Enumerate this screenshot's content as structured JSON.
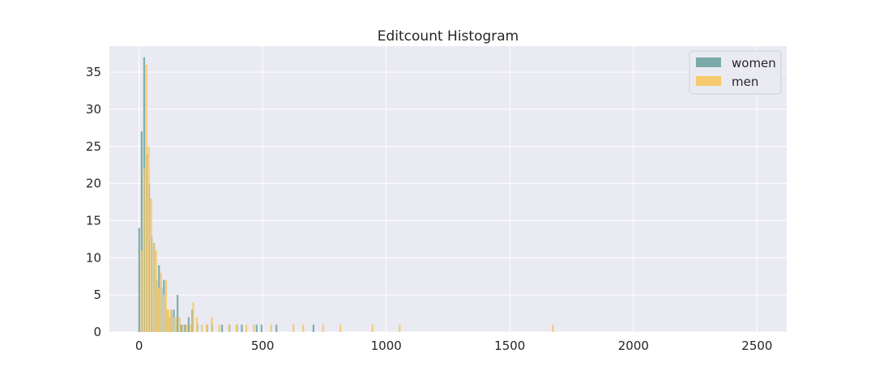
{
  "chart_data": {
    "type": "bar",
    "title": "Editcount Histogram",
    "xlabel": "",
    "ylabel": "",
    "xlim": [
      -120,
      2620
    ],
    "ylim": [
      0,
      38.5
    ],
    "xticks": [
      0,
      500,
      1000,
      1500,
      2000,
      2500
    ],
    "yticks": [
      0,
      5,
      10,
      15,
      20,
      25,
      30,
      35
    ],
    "grid": true,
    "legend_position": "top-right",
    "series": [
      {
        "name": "women",
        "color": "#7aabaa",
        "bars": [
          {
            "x": 5,
            "value": 14
          },
          {
            "x": 15,
            "value": 27
          },
          {
            "x": 25,
            "value": 37
          },
          {
            "x": 35,
            "value": 24
          },
          {
            "x": 45,
            "value": 20
          },
          {
            "x": 55,
            "value": 13
          },
          {
            "x": 65,
            "value": 12
          },
          {
            "x": 75,
            "value": 7
          },
          {
            "x": 85,
            "value": 9
          },
          {
            "x": 95,
            "value": 6
          },
          {
            "x": 105,
            "value": 7
          },
          {
            "x": 115,
            "value": 3
          },
          {
            "x": 125,
            "value": 2
          },
          {
            "x": 135,
            "value": 3
          },
          {
            "x": 145,
            "value": 3
          },
          {
            "x": 160,
            "value": 5
          },
          {
            "x": 175,
            "value": 1
          },
          {
            "x": 190,
            "value": 1
          },
          {
            "x": 205,
            "value": 2
          },
          {
            "x": 220,
            "value": 3
          },
          {
            "x": 240,
            "value": 1
          },
          {
            "x": 280,
            "value": 1
          },
          {
            "x": 300,
            "value": 1
          },
          {
            "x": 340,
            "value": 1
          },
          {
            "x": 370,
            "value": 1
          },
          {
            "x": 400,
            "value": 1
          },
          {
            "x": 420,
            "value": 1
          },
          {
            "x": 480,
            "value": 1
          },
          {
            "x": 500,
            "value": 1
          },
          {
            "x": 560,
            "value": 1
          },
          {
            "x": 710,
            "value": 1
          }
        ]
      },
      {
        "name": "men",
        "color": "#f5c96c",
        "bars": [
          {
            "x": 5,
            "value": 11
          },
          {
            "x": 15,
            "value": 22
          },
          {
            "x": 25,
            "value": 36
          },
          {
            "x": 35,
            "value": 25
          },
          {
            "x": 45,
            "value": 18
          },
          {
            "x": 55,
            "value": 12
          },
          {
            "x": 65,
            "value": 11
          },
          {
            "x": 75,
            "value": 6
          },
          {
            "x": 85,
            "value": 8
          },
          {
            "x": 95,
            "value": 5
          },
          {
            "x": 105,
            "value": 7
          },
          {
            "x": 115,
            "value": 3
          },
          {
            "x": 125,
            "value": 3
          },
          {
            "x": 135,
            "value": 2
          },
          {
            "x": 145,
            "value": 2
          },
          {
            "x": 160,
            "value": 2
          },
          {
            "x": 175,
            "value": 1
          },
          {
            "x": 190,
            "value": 1
          },
          {
            "x": 205,
            "value": 1
          },
          {
            "x": 215,
            "value": 4
          },
          {
            "x": 230,
            "value": 2
          },
          {
            "x": 250,
            "value": 1
          },
          {
            "x": 270,
            "value": 1
          },
          {
            "x": 290,
            "value": 2
          },
          {
            "x": 320,
            "value": 1
          },
          {
            "x": 360,
            "value": 1
          },
          {
            "x": 390,
            "value": 1
          },
          {
            "x": 430,
            "value": 1
          },
          {
            "x": 460,
            "value": 1
          },
          {
            "x": 530,
            "value": 1
          },
          {
            "x": 620,
            "value": 1
          },
          {
            "x": 660,
            "value": 1
          },
          {
            "x": 740,
            "value": 1
          },
          {
            "x": 810,
            "value": 1
          },
          {
            "x": 940,
            "value": 1
          },
          {
            "x": 1050,
            "value": 1
          },
          {
            "x": 1670,
            "value": 1
          }
        ]
      }
    ]
  }
}
